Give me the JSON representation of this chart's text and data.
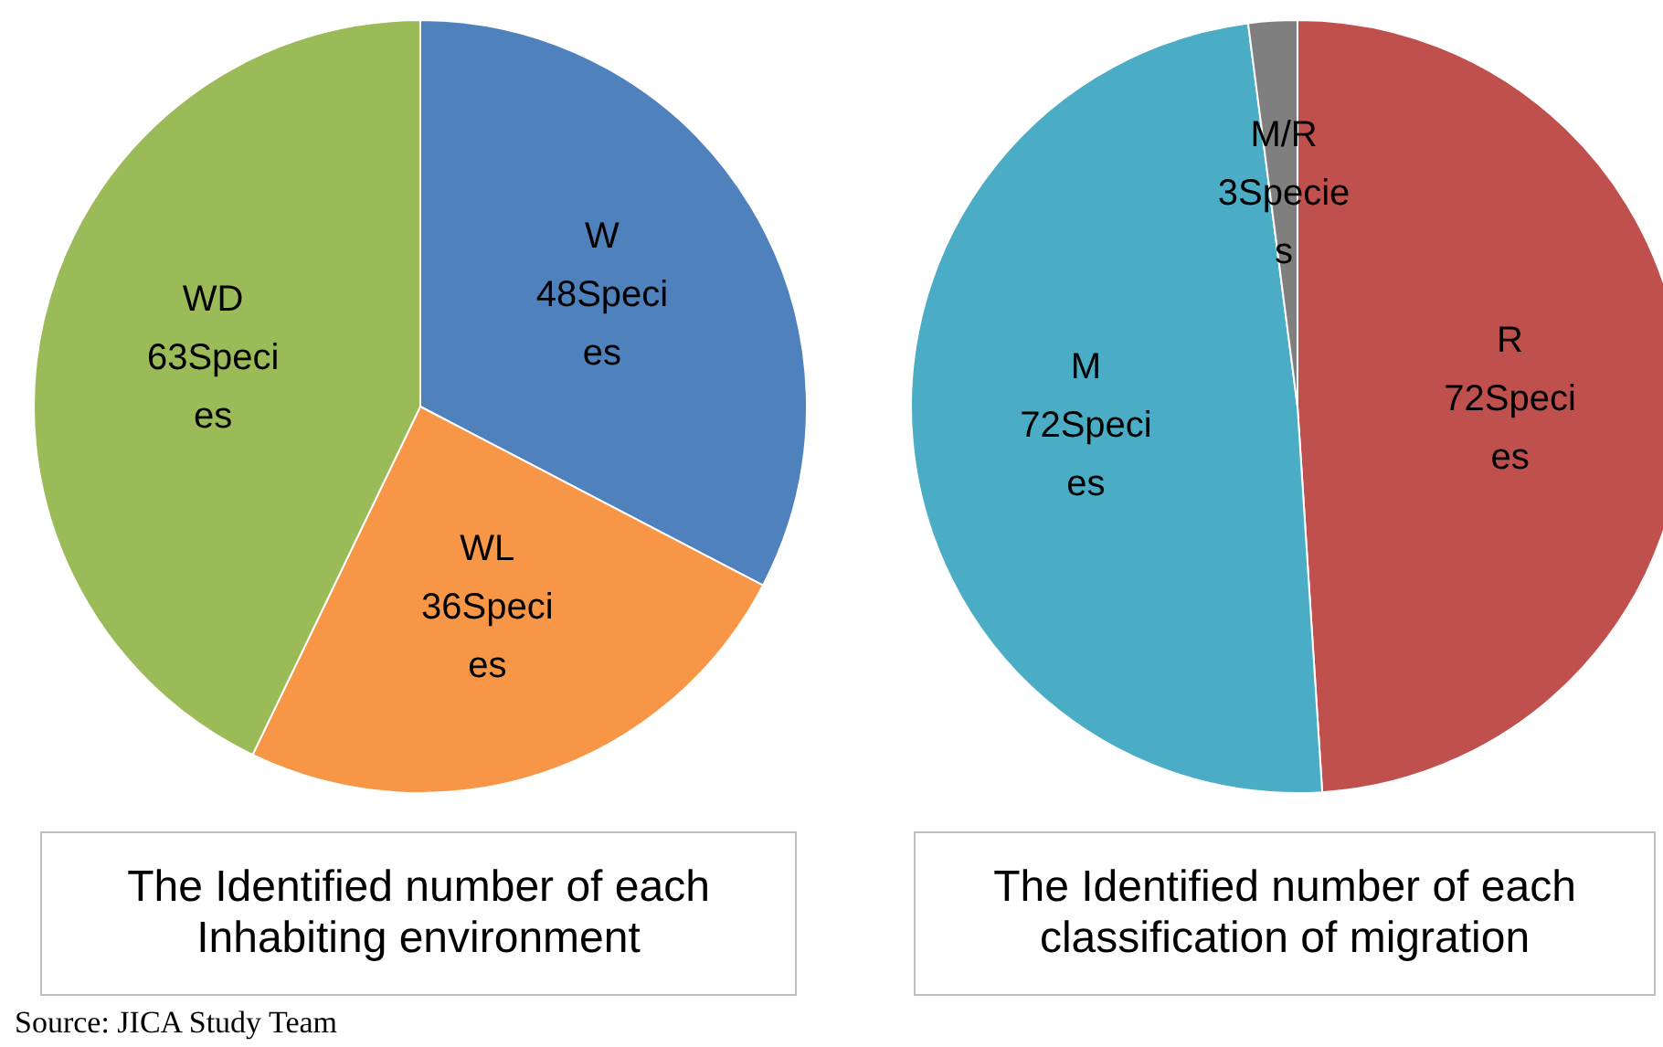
{
  "chart_data": [
    {
      "type": "pie",
      "title": "The Identified number of each Inhabiting environment",
      "categories": [
        "W",
        "WL",
        "WD"
      ],
      "values": [
        48,
        36,
        63
      ],
      "colors": [
        "#4f81bd",
        "#f79646",
        "#9bbb59"
      ],
      "value_labels": [
        "48Species",
        "36Species",
        "63Species"
      ],
      "annotations": [
        "Source: JICA Study Team"
      ]
    },
    {
      "type": "pie",
      "title": "The Identified number of  each classification of migration",
      "categories": [
        "R",
        "M",
        "M/R"
      ],
      "values": [
        72,
        72,
        3
      ],
      "colors": [
        "#c0504d",
        "#4bacc6",
        "#7f7f7f"
      ],
      "value_labels": [
        "72Species",
        "72Species",
        "3Species"
      ]
    }
  ]
}
